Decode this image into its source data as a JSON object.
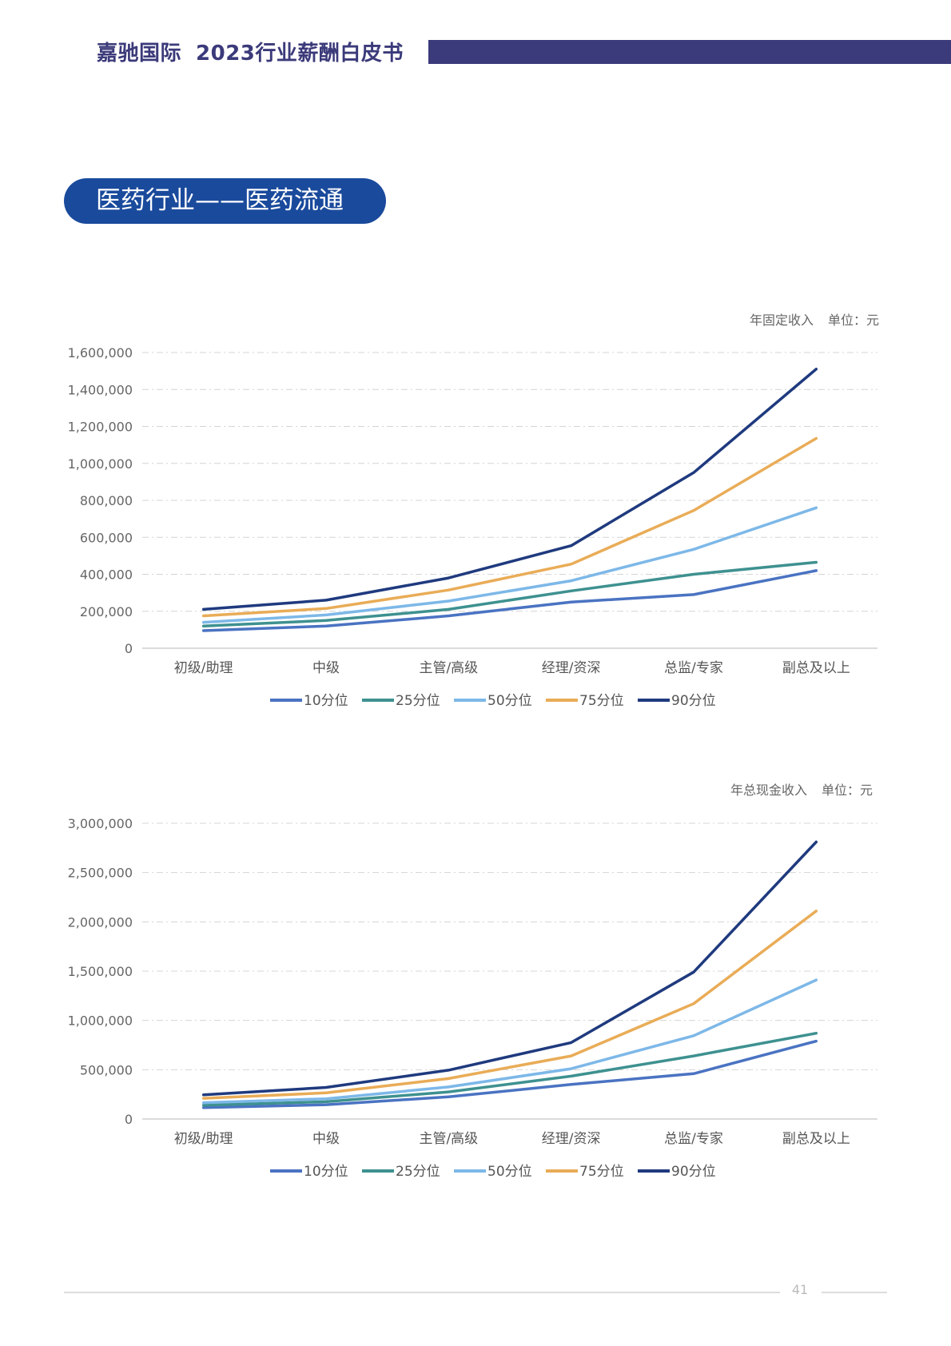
{
  "header": {
    "company": "嘉驰国际",
    "title": "2023行业薪酬白皮书"
  },
  "section_title": "医药行业——医药流通",
  "page_number": "41",
  "colors": {
    "brand": "#3b3a7a",
    "pill": "#1a4a9c",
    "series": [
      "#4a73c2",
      "#3e9190",
      "#7db8e8",
      "#e9ac57",
      "#1f3a7e"
    ]
  },
  "chart_data": [
    {
      "type": "line",
      "title": "年固定收入",
      "unit_label": "单位：元",
      "categories": [
        "初级/助理",
        "中级",
        "主管/高级",
        "经理/资深",
        "总监/专家",
        "副总及以上"
      ],
      "series": [
        {
          "name": "10分位",
          "values": [
            95000,
            120000,
            175000,
            250000,
            290000,
            420000
          ]
        },
        {
          "name": "25分位",
          "values": [
            120000,
            150000,
            210000,
            310000,
            400000,
            465000
          ]
        },
        {
          "name": "50分位",
          "values": [
            140000,
            180000,
            255000,
            365000,
            535000,
            760000
          ]
        },
        {
          "name": "75分位",
          "values": [
            175000,
            215000,
            315000,
            455000,
            745000,
            1135000
          ]
        },
        {
          "name": "90分位",
          "values": [
            210000,
            260000,
            380000,
            555000,
            950000,
            1510000
          ]
        }
      ],
      "ylim": [
        0,
        1600000
      ],
      "yticks": [
        "0",
        "200,000",
        "400,000",
        "600,000",
        "800,000",
        "1,000,000",
        "1,200,000",
        "1,400,000",
        "1,600,000"
      ],
      "grid": true,
      "legend": "bottom"
    },
    {
      "type": "line",
      "title": "年总现金收入",
      "unit_label": "单位：元",
      "categories": [
        "初级/助理",
        "中级",
        "主管/高级",
        "经理/资深",
        "总监/专家",
        "副总及以上"
      ],
      "series": [
        {
          "name": "10分位",
          "values": [
            115000,
            145000,
            225000,
            350000,
            460000,
            790000
          ]
        },
        {
          "name": "25分位",
          "values": [
            140000,
            175000,
            275000,
            435000,
            640000,
            870000
          ]
        },
        {
          "name": "50分位",
          "values": [
            165000,
            205000,
            325000,
            510000,
            845000,
            1410000
          ]
        },
        {
          "name": "75分位",
          "values": [
            210000,
            265000,
            410000,
            640000,
            1170000,
            2110000
          ]
        },
        {
          "name": "90分位",
          "values": [
            245000,
            320000,
            495000,
            775000,
            1490000,
            2810000
          ]
        }
      ],
      "ylim": [
        0,
        3000000
      ],
      "yticks": [
        "0",
        "500,000",
        "1,000,000",
        "1,500,000",
        "2,000,000",
        "2,500,000",
        "3,000,000"
      ],
      "grid": true,
      "legend": "bottom"
    }
  ]
}
